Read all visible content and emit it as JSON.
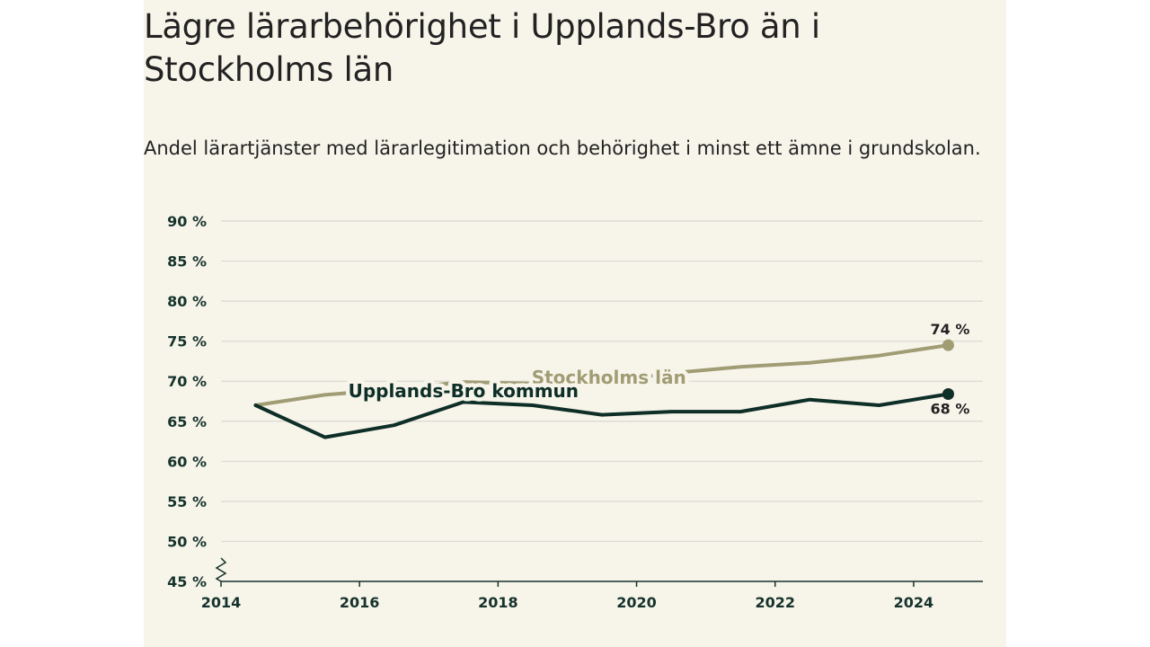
{
  "colors": {
    "background": "#f7f5ea",
    "stockholm": "#a09c74",
    "upplands_bro": "#0e2e28",
    "grid": "#d9d8d2",
    "axis": "#16322c"
  },
  "chart_data": {
    "type": "line",
    "title": "Lägre lärarbehörighet i Upplands-Bro än i Stockholms län",
    "subtitle": "Andel lärartjänster med lärarlegitimation och behörighet i minst ett ämne i grundskolan.",
    "xlim": [
      2014,
      2025
    ],
    "ylim": [
      45,
      90
    ],
    "y_ticks": [
      90,
      85,
      80,
      75,
      70,
      65,
      60,
      55,
      50,
      45
    ],
    "y_tick_labels": [
      "90 %",
      "85 %",
      "80 %",
      "75 %",
      "70 %",
      "65 %",
      "60 %",
      "55 %",
      "50 %",
      "45 %"
    ],
    "x_ticks": [
      2014,
      2016,
      2018,
      2020,
      2022,
      2024
    ],
    "x_tick_labels": [
      "2014",
      "2016",
      "2018",
      "2020",
      "2022",
      "2024"
    ],
    "axis_break": true,
    "grid": "horizontal",
    "series": [
      {
        "name": "Stockholms län",
        "color": "#a09c74",
        "x": [
          2014.5,
          2015.5,
          2016.5,
          2017.5,
          2018.5,
          2019.5,
          2020.5,
          2021.5,
          2022.5,
          2023.5,
          2024.5
        ],
        "y": [
          67.0,
          68.3,
          69.0,
          69.9,
          69.7,
          69.8,
          71.0,
          71.8,
          72.3,
          73.2,
          74.5
        ],
        "end_label": "74 %"
      },
      {
        "name": "Upplands-Bro kommun",
        "color": "#0e2e28",
        "x": [
          2014.5,
          2015.5,
          2016.5,
          2017.5,
          2018.5,
          2019.5,
          2020.5,
          2021.5,
          2022.5,
          2023.5,
          2024.5
        ],
        "y": [
          67.0,
          63.0,
          64.5,
          67.4,
          67.0,
          65.8,
          66.2,
          66.2,
          67.7,
          67.0,
          68.4
        ],
        "end_label": "68 %"
      }
    ]
  }
}
